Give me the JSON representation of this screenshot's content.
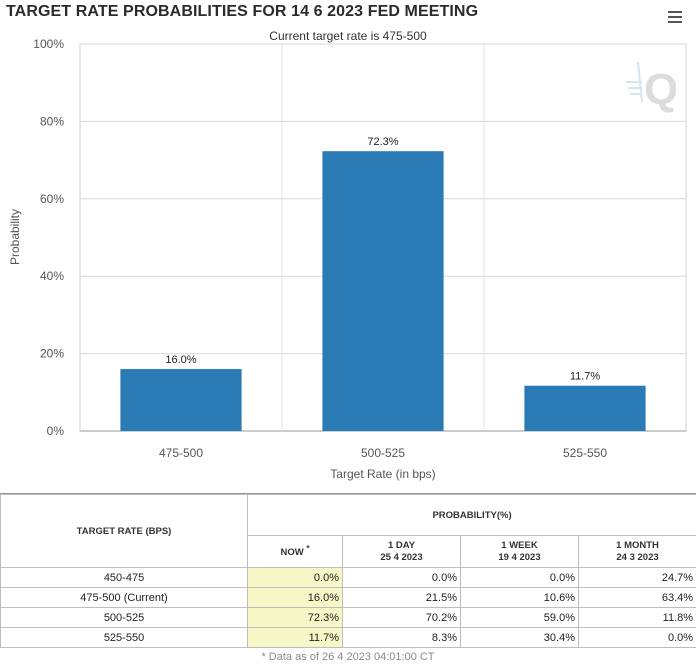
{
  "header": {
    "title": "TARGET RATE PROBABILITIES FOR 14 6 2023 FED MEETING",
    "subtitle": "Current target rate is 475-500"
  },
  "colors": {
    "bar": "#2a7ab6",
    "now_highlight": "#f6f6c6"
  },
  "chart_data": {
    "type": "bar",
    "title": "TARGET RATE PROBABILITIES FOR 14 6 2023 FED MEETING",
    "subtitle": "Current target rate is 475-500",
    "categories": [
      "475-500",
      "500-525",
      "525-550"
    ],
    "values": [
      16.0,
      72.3,
      11.7
    ],
    "data_labels": [
      "16.0%",
      "72.3%",
      "11.7%"
    ],
    "xlabel": "Target Rate (in bps)",
    "ylabel": "Probability",
    "ylim": [
      0,
      100
    ],
    "yticks": [
      0,
      20,
      40,
      60,
      80,
      100
    ],
    "ytick_labels": [
      "0%",
      "20%",
      "40%",
      "60%",
      "80%",
      "100%"
    ],
    "grid": true
  },
  "table": {
    "col_target": "TARGET RATE (BPS)",
    "col_probability": "PROBABILITY(%)",
    "col_now": "NOW",
    "now_mark": "*",
    "col_1day": "1 DAY",
    "col_1day_date": "25 4 2023",
    "col_1week": "1 WEEK",
    "col_1week_date": "19 4 2023",
    "col_1month": "1 MONTH",
    "col_1month_date": "24 3 2023",
    "rows": [
      {
        "rate": "450-475",
        "now": "0.0%",
        "day": "0.0%",
        "week": "0.0%",
        "month": "24.7%"
      },
      {
        "rate": "475-500 (Current)",
        "now": "16.0%",
        "day": "21.5%",
        "week": "10.6%",
        "month": "63.4%"
      },
      {
        "rate": "500-525",
        "now": "72.3%",
        "day": "70.2%",
        "week": "59.0%",
        "month": "11.8%"
      },
      {
        "rate": "525-550",
        "now": "11.7%",
        "day": "8.3%",
        "week": "30.4%",
        "month": "0.0%"
      }
    ],
    "footnote": "* Data as of 26 4 2023 04:01:00 CT"
  }
}
